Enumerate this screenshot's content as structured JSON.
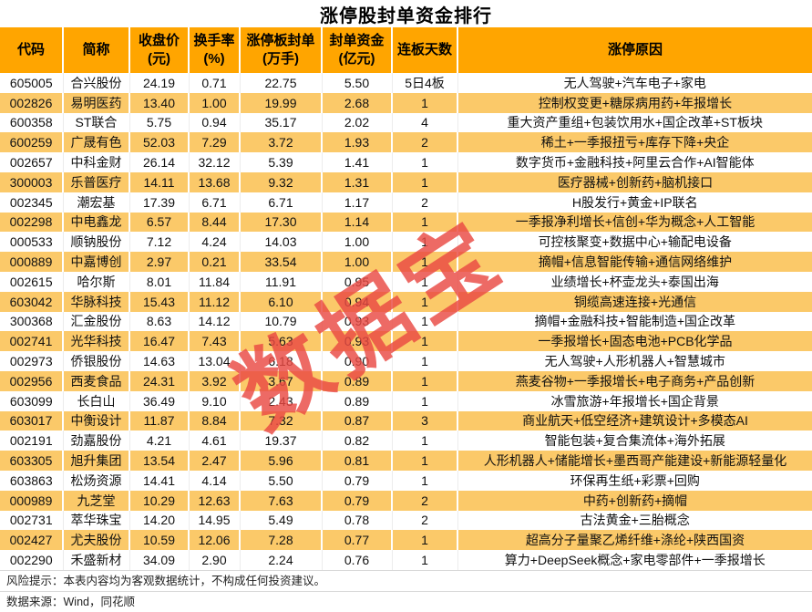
{
  "title": "涨停股封单资金排行",
  "watermark_text": "数据宝",
  "colors": {
    "header_bg": "#FFA500",
    "stripe_bg": "#FBC969",
    "watermark": "#EA4A44"
  },
  "footer": {
    "risk_note": "风险提示：本表内容均为客观数据统计，不构成任何投资建议。",
    "source_note": "数据来源：Wind，同花顺"
  },
  "chart_data": {
    "type": "table",
    "title": "涨停股封单资金排行",
    "columns": [
      {
        "line1": "代码",
        "line2": ""
      },
      {
        "line1": "简称",
        "line2": ""
      },
      {
        "line1": "收盘价",
        "line2": "(元)"
      },
      {
        "line1": "换手率",
        "line2": "(%)"
      },
      {
        "line1": "涨停板封单",
        "line2": "(万手)"
      },
      {
        "line1": "封单资金",
        "line2": "(亿元)"
      },
      {
        "line1": "连板天数",
        "line2": ""
      },
      {
        "line1": "涨停原因",
        "line2": ""
      }
    ],
    "column_keys": [
      "code",
      "name",
      "close_price",
      "turnover_rate",
      "seal_volume",
      "seal_fund",
      "limit_days",
      "reason"
    ],
    "rows": [
      [
        "605005",
        "合兴股份",
        "24.19",
        "0.71",
        "22.75",
        "5.50",
        "5日4板",
        "无人驾驶+汽车电子+家电"
      ],
      [
        "002826",
        "易明医药",
        "13.40",
        "1.00",
        "19.99",
        "2.68",
        "1",
        "控制权变更+糖尿病用药+年报增长"
      ],
      [
        "600358",
        "ST联合",
        "5.75",
        "0.94",
        "35.17",
        "2.02",
        "4",
        "重大资产重组+包装饮用水+国企改革+ST板块"
      ],
      [
        "600259",
        "广晟有色",
        "52.03",
        "7.29",
        "3.72",
        "1.93",
        "2",
        "稀土+一季报扭亏+库存下降+央企"
      ],
      [
        "002657",
        "中科金财",
        "26.14",
        "32.12",
        "5.39",
        "1.41",
        "1",
        "数字货币+金融科技+阿里云合作+AI智能体"
      ],
      [
        "300003",
        "乐普医疗",
        "14.11",
        "13.68",
        "9.32",
        "1.31",
        "1",
        "医疗器械+创新药+脑机接口"
      ],
      [
        "002345",
        "潮宏基",
        "17.39",
        "6.71",
        "6.71",
        "1.17",
        "2",
        "H股发行+黄金+IP联名"
      ],
      [
        "002298",
        "中电鑫龙",
        "6.57",
        "8.44",
        "17.30",
        "1.14",
        "1",
        "一季报净利增长+信创+华为概念+人工智能"
      ],
      [
        "000533",
        "顺钠股份",
        "7.12",
        "4.24",
        "14.03",
        "1.00",
        "1",
        "可控核聚变+数据中心+输配电设备"
      ],
      [
        "000889",
        "中嘉博创",
        "2.97",
        "0.21",
        "33.54",
        "1.00",
        "1",
        "摘帽+信息智能传输+通信网络维护"
      ],
      [
        "002615",
        "哈尔斯",
        "8.01",
        "11.84",
        "11.91",
        "0.95",
        "1",
        "业绩增长+杯壶龙头+泰国出海"
      ],
      [
        "603042",
        "华脉科技",
        "15.43",
        "11.12",
        "6.10",
        "0.94",
        "1",
        "铜缆高速连接+光通信"
      ],
      [
        "300368",
        "汇金股份",
        "8.63",
        "14.12",
        "10.79",
        "0.93",
        "1",
        "摘帽+金融科技+智能制造+国企改革"
      ],
      [
        "002741",
        "光华科技",
        "16.47",
        "7.43",
        "5.63",
        "0.93",
        "1",
        "一季报增长+固态电池+PCB化学品"
      ],
      [
        "002973",
        "侨银股份",
        "14.63",
        "13.04",
        "6.18",
        "0.90",
        "1",
        "无人驾驶+人形机器人+智慧城市"
      ],
      [
        "002956",
        "西麦食品",
        "24.31",
        "3.92",
        "3.67",
        "0.89",
        "1",
        "燕麦谷物+一季报增长+电子商务+产品创新"
      ],
      [
        "603099",
        "长白山",
        "36.49",
        "9.10",
        "2.43",
        "0.89",
        "1",
        "冰雪旅游+年报增长+国企背景"
      ],
      [
        "603017",
        "中衡设计",
        "11.87",
        "8.84",
        "7.32",
        "0.87",
        "3",
        "商业航天+低空经济+建筑设计+多模态AI"
      ],
      [
        "002191",
        "劲嘉股份",
        "4.21",
        "4.61",
        "19.37",
        "0.82",
        "1",
        "智能包装+复合集流体+海外拓展"
      ],
      [
        "603305",
        "旭升集团",
        "13.54",
        "2.47",
        "5.96",
        "0.81",
        "1",
        "人形机器人+储能增长+墨西哥产能建设+新能源轻量化"
      ],
      [
        "603863",
        "松炀资源",
        "14.41",
        "4.14",
        "5.50",
        "0.79",
        "1",
        "环保再生纸+彩票+回购"
      ],
      [
        "000989",
        "九芝堂",
        "10.29",
        "12.63",
        "7.63",
        "0.79",
        "2",
        "中药+创新药+摘帽"
      ],
      [
        "002731",
        "萃华珠宝",
        "14.20",
        "14.95",
        "5.49",
        "0.78",
        "2",
        "古法黄金+三胎概念"
      ],
      [
        "002427",
        "尤夫股份",
        "10.59",
        "12.06",
        "7.28",
        "0.77",
        "1",
        "超高分子量聚乙烯纤维+涤纶+陕西国资"
      ],
      [
        "002290",
        "禾盛新材",
        "34.09",
        "2.90",
        "2.24",
        "0.76",
        "1",
        "算力+DeepSeek概念+家电零部件+一季报增长"
      ]
    ]
  }
}
